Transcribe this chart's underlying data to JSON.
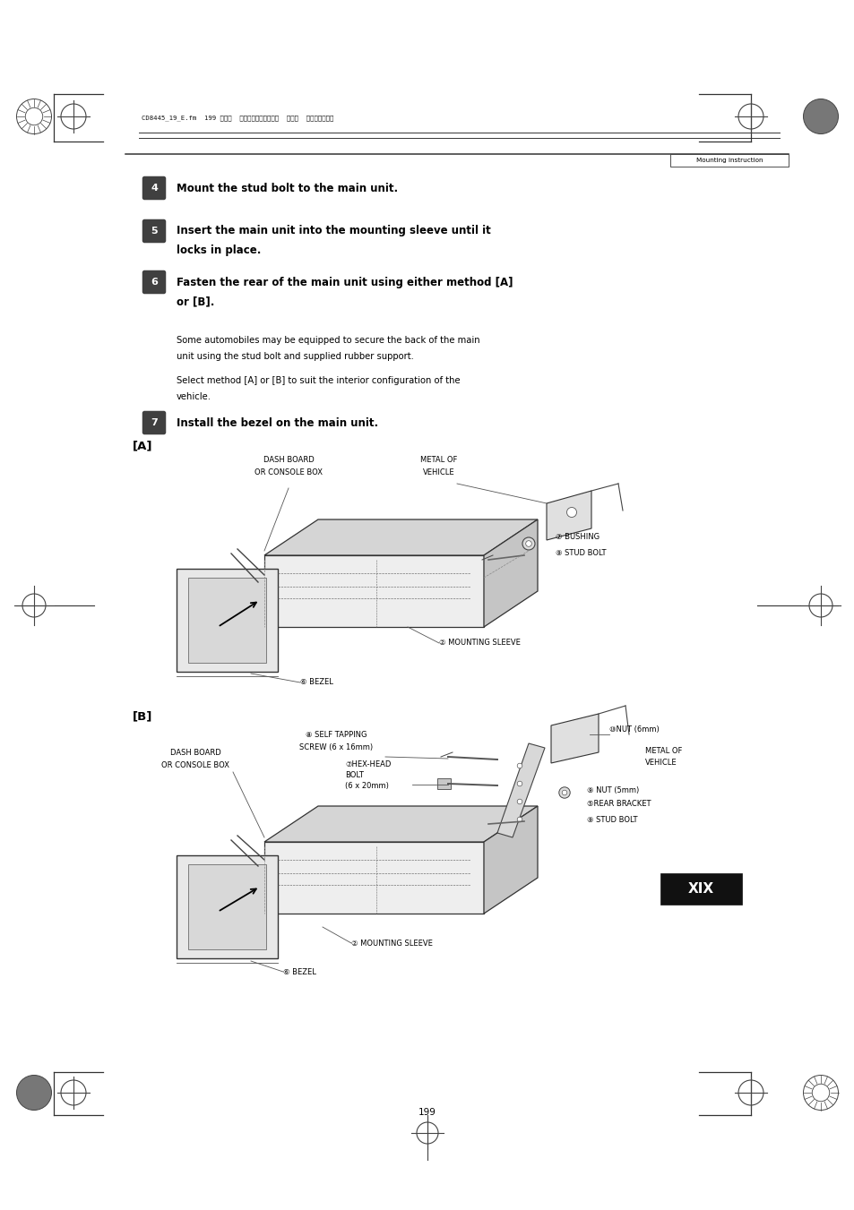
{
  "page_width": 9.54,
  "page_height": 13.51,
  "bg_color": "#ffffff",
  "header_text": "Mounting instruction",
  "header_file_text": "CD8445_19_E.fm  199 ページ  ２００５年１月２６日  水曜日  午後２時４８分",
  "step4_text": "Mount the stud bolt to the main unit.",
  "step5_line1": "Insert the main unit into the mounting sleeve until it",
  "step5_line2": "locks in place.",
  "step6_line1": "Fasten the rear of the main unit using either method [A]",
  "step6_line2": "or [B].",
  "para1_line1": "Some automobiles may be equipped to secure the back of the main",
  "para1_line2": "unit using the stud bolt and supplied rubber support.",
  "para2_line1": "Select method [A] or [B] to suit the interior configuration of the",
  "para2_line2": "vehicle.",
  "step7_text": "Install the bezel on the main unit.",
  "label_A": "[A]",
  "label_B": "[B]",
  "footer_page": "199",
  "xix_label": "XIX",
  "step_badge_color": "#404040",
  "step_text_color": "#ffffff",
  "body_text_color": "#000000"
}
